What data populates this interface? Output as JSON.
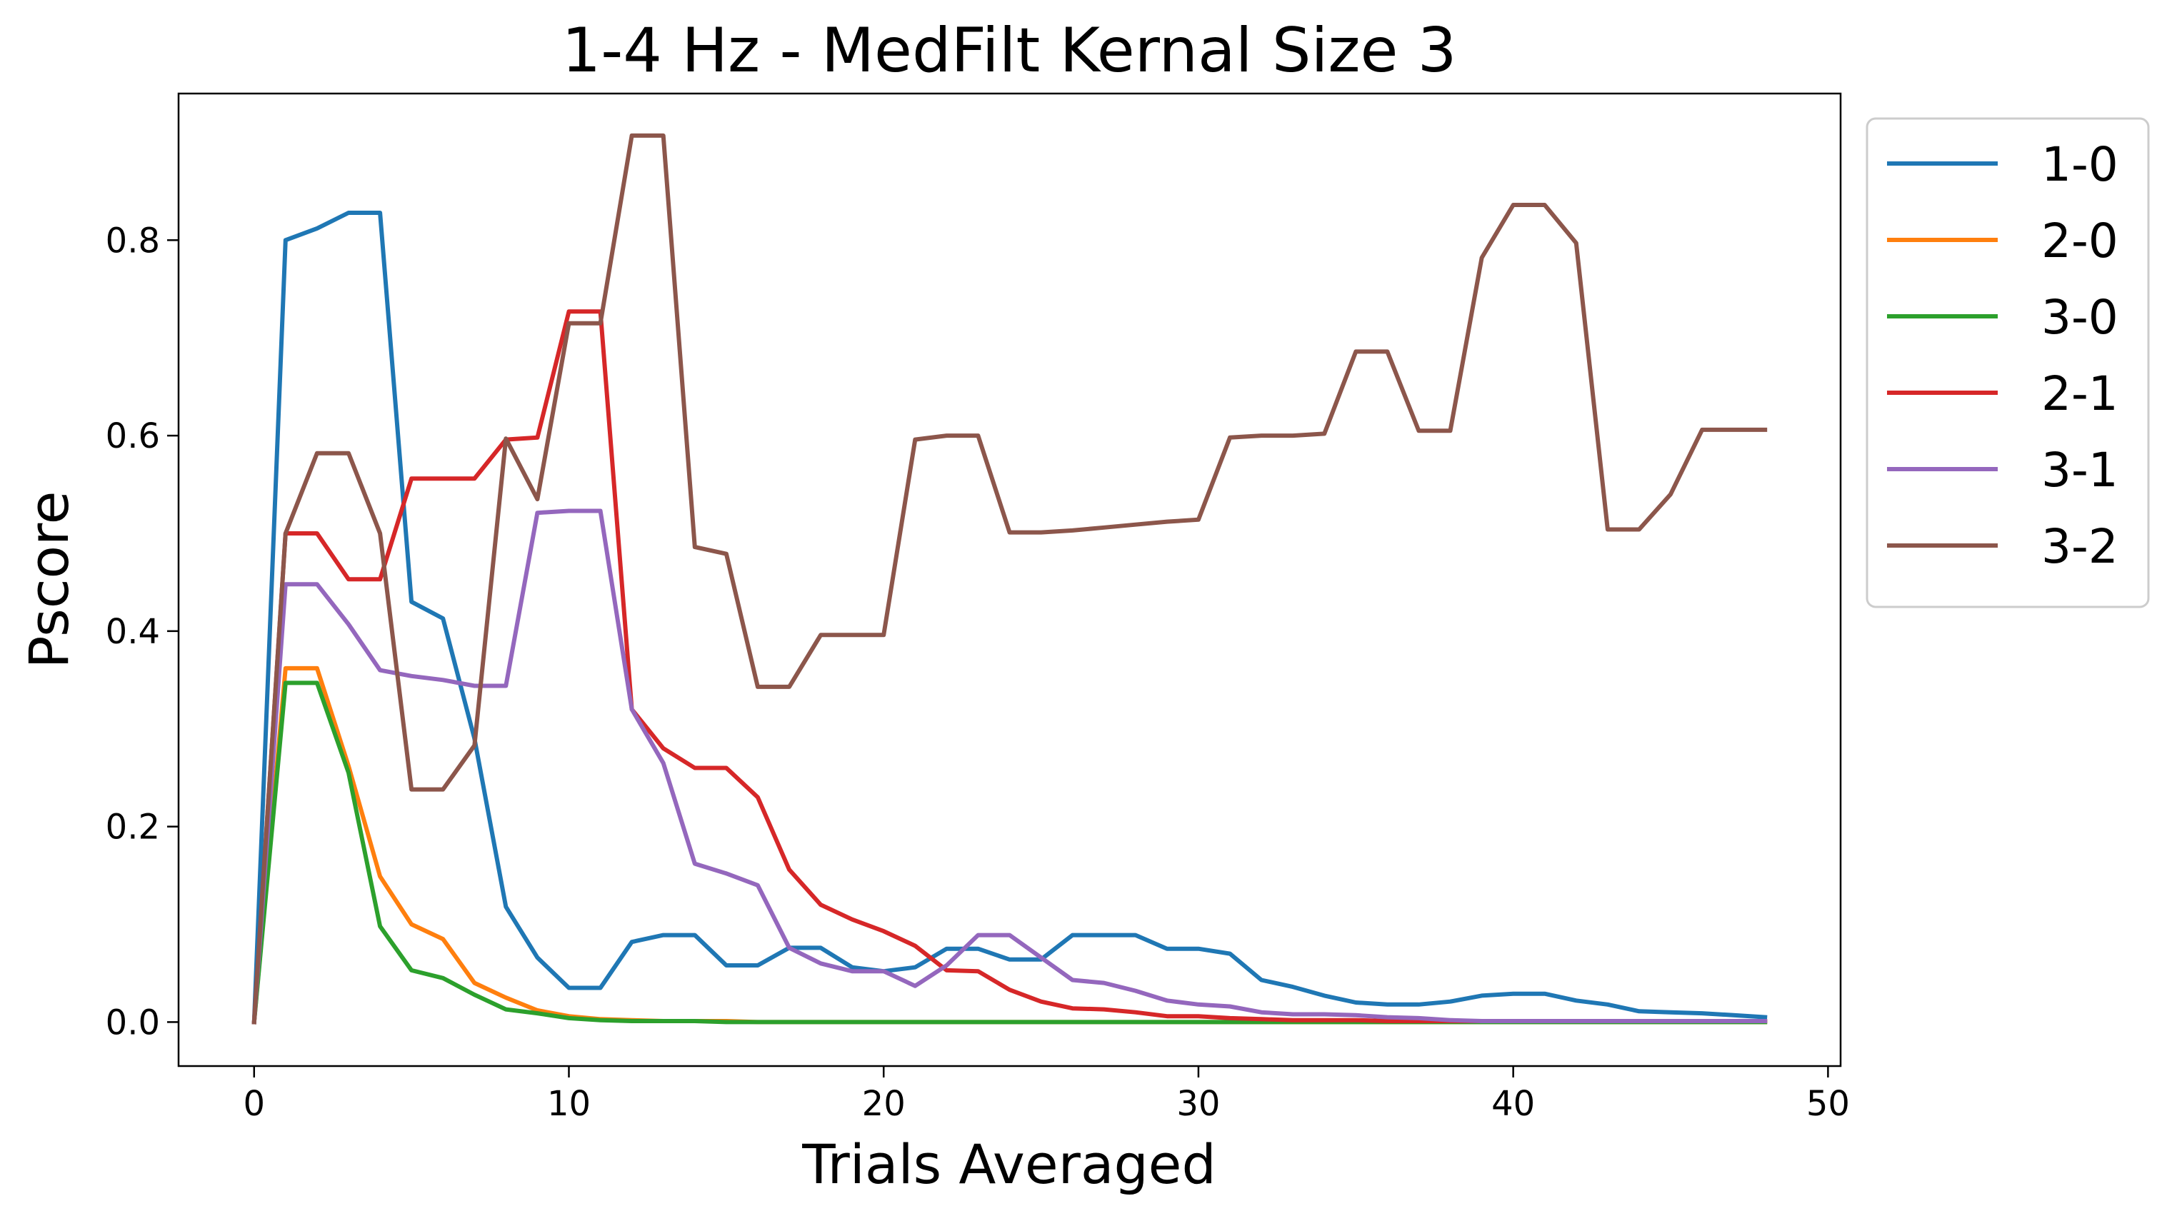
{
  "chart_data": {
    "type": "line",
    "title": "1-4 Hz - MedFilt Kernal Size 3",
    "xlabel": "Trials Averaged",
    "ylabel": "Pscore",
    "xlim": [
      -2.4,
      50.4
    ],
    "ylim": [
      -0.045,
      0.95
    ],
    "xticks": [
      0,
      10,
      20,
      30,
      40,
      50
    ],
    "yticks": [
      0.0,
      0.2,
      0.4,
      0.6,
      0.8
    ],
    "xtick_labels": [
      "0",
      "10",
      "20",
      "30",
      "40",
      "50"
    ],
    "ytick_labels": [
      "0.0",
      "0.2",
      "0.4",
      "0.6",
      "0.8"
    ],
    "grid": false,
    "legend_position": "outside-right-top",
    "x": [
      0,
      1,
      2,
      3,
      4,
      5,
      6,
      7,
      8,
      9,
      10,
      11,
      12,
      13,
      14,
      15,
      16,
      17,
      18,
      19,
      20,
      21,
      22,
      23,
      24,
      25,
      26,
      27,
      28,
      29,
      30,
      31,
      32,
      33,
      34,
      35,
      36,
      37,
      38,
      39,
      40,
      41,
      42,
      43,
      44,
      45,
      46,
      47,
      48
    ],
    "series": [
      {
        "name": "1-0",
        "color": "#1f77b4",
        "values": [
          0.0,
          0.8,
          0.812,
          0.828,
          0.828,
          0.43,
          0.413,
          0.29,
          0.118,
          0.066,
          0.035,
          0.035,
          0.082,
          0.089,
          0.089,
          0.058,
          0.058,
          0.076,
          0.076,
          0.056,
          0.052,
          0.056,
          0.075,
          0.075,
          0.064,
          0.064,
          0.089,
          0.089,
          0.089,
          0.075,
          0.075,
          0.07,
          0.043,
          0.036,
          0.027,
          0.02,
          0.018,
          0.018,
          0.021,
          0.027,
          0.029,
          0.029,
          0.022,
          0.018,
          0.011,
          0.01,
          0.009,
          0.007,
          0.005
        ]
      },
      {
        "name": "2-0",
        "color": "#ff7f0e",
        "values": [
          0.0,
          0.362,
          0.362,
          0.262,
          0.149,
          0.1,
          0.085,
          0.04,
          0.025,
          0.012,
          0.006,
          0.003,
          0.002,
          0.001,
          0.001,
          0.001,
          0.0,
          0.0,
          0.0,
          0.0,
          0.0,
          0.0,
          0.0,
          0.0,
          0.0,
          0.0,
          0.0,
          0.0,
          0.0,
          0.0,
          0.0,
          0.0,
          0.0,
          0.0,
          0.0,
          0.0,
          0.0,
          0.0,
          0.0,
          0.0,
          0.0,
          0.0,
          0.0,
          0.0,
          0.0,
          0.0,
          0.0,
          0.0,
          0.0
        ]
      },
      {
        "name": "3-0",
        "color": "#2ca02c",
        "values": [
          0.0,
          0.347,
          0.347,
          0.255,
          0.098,
          0.053,
          0.045,
          0.028,
          0.013,
          0.009,
          0.004,
          0.002,
          0.001,
          0.001,
          0.001,
          0.0,
          0.0,
          0.0,
          0.0,
          0.0,
          0.0,
          0.0,
          0.0,
          0.0,
          0.0,
          0.0,
          0.0,
          0.0,
          0.0,
          0.0,
          0.0,
          0.0,
          0.0,
          0.0,
          0.0,
          0.0,
          0.0,
          0.0,
          0.0,
          0.0,
          0.0,
          0.0,
          0.0,
          0.0,
          0.0,
          0.0,
          0.0,
          0.0,
          0.0
        ]
      },
      {
        "name": "2-1",
        "color": "#d62728",
        "values": [
          0.0,
          0.5,
          0.5,
          0.453,
          0.453,
          0.556,
          0.556,
          0.556,
          0.596,
          0.598,
          0.727,
          0.727,
          0.32,
          0.28,
          0.26,
          0.26,
          0.23,
          0.156,
          0.12,
          0.105,
          0.093,
          0.078,
          0.053,
          0.052,
          0.033,
          0.021,
          0.014,
          0.013,
          0.01,
          0.006,
          0.006,
          0.004,
          0.003,
          0.002,
          0.002,
          0.002,
          0.001,
          0.001,
          0.001,
          0.001,
          0.001,
          0.001,
          0.001,
          0.001,
          0.001,
          0.001,
          0.001,
          0.001,
          0.001
        ]
      },
      {
        "name": "3-1",
        "color": "#9467bd",
        "values": [
          0.0,
          0.448,
          0.448,
          0.407,
          0.36,
          0.354,
          0.35,
          0.344,
          0.344,
          0.521,
          0.523,
          0.523,
          0.32,
          0.265,
          0.162,
          0.152,
          0.14,
          0.076,
          0.06,
          0.052,
          0.052,
          0.037,
          0.058,
          0.089,
          0.089,
          0.066,
          0.043,
          0.04,
          0.032,
          0.022,
          0.018,
          0.016,
          0.01,
          0.008,
          0.008,
          0.007,
          0.005,
          0.004,
          0.002,
          0.001,
          0.001,
          0.001,
          0.001,
          0.001,
          0.001,
          0.001,
          0.001,
          0.001,
          0.001
        ]
      },
      {
        "name": "3-2",
        "color": "#8c564b",
        "values": [
          0.0,
          0.5,
          0.582,
          0.582,
          0.5,
          0.238,
          0.238,
          0.283,
          0.597,
          0.535,
          0.715,
          0.715,
          0.907,
          0.907,
          0.486,
          0.479,
          0.343,
          0.343,
          0.396,
          0.396,
          0.396,
          0.596,
          0.6,
          0.6,
          0.501,
          0.501,
          0.503,
          0.506,
          0.509,
          0.512,
          0.514,
          0.598,
          0.6,
          0.6,
          0.602,
          0.686,
          0.686,
          0.605,
          0.605,
          0.782,
          0.836,
          0.836,
          0.797,
          0.504,
          0.504,
          0.54,
          0.606,
          0.606,
          0.606
        ]
      }
    ]
  }
}
